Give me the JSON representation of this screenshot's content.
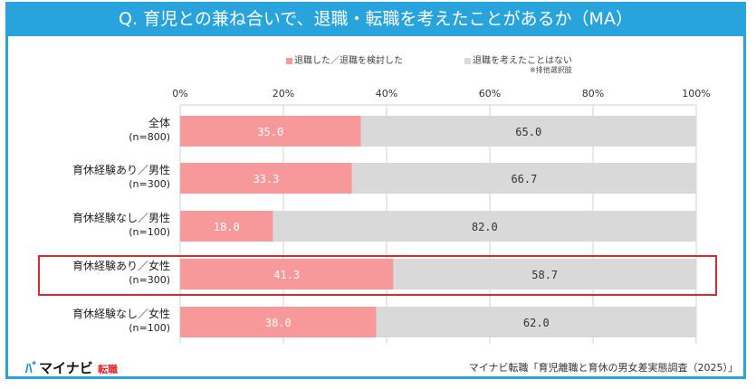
{
  "title": "Q. 育児との兼ね合いで、退職・転職を考えたことがあるか（MA）",
  "note": "※排他選択肢",
  "source": "マイナビ転職「育児離職と育休の男女差実態調査（2025）」",
  "logo": {
    "mark": "ﾊﾞ",
    "brand": "マイナビ",
    "sub": "転職"
  },
  "colors": {
    "series1": "#f7999b",
    "series2": "#d9d9d9",
    "frame": "#29a3dc",
    "highlight": "#e0262e"
  },
  "chart_data": {
    "type": "bar",
    "orientation": "horizontal",
    "stacked": true,
    "xlim": [
      0,
      100
    ],
    "ticks": [
      "0%",
      "20%",
      "40%",
      "60%",
      "80%",
      "100%"
    ],
    "grid": true,
    "legend": "top",
    "categories": [
      {
        "label": "全体",
        "n": "(n=800)"
      },
      {
        "label": "育休経験あり／男性",
        "n": "(n=300)"
      },
      {
        "label": "育休経験なし／男性",
        "n": "(n=100)"
      },
      {
        "label": "育休経験あり／女性",
        "n": "(n=300)",
        "highlighted": true
      },
      {
        "label": "育休経験なし／女性",
        "n": "(n=100)"
      }
    ],
    "series": [
      {
        "name": "退職した／退職を検討した",
        "values": [
          35.0,
          33.3,
          18.0,
          41.3,
          38.0
        ],
        "labels": [
          "35.0",
          "33.3",
          "18.0",
          "41.3",
          "38.0"
        ]
      },
      {
        "name": "退職を考えたことはない",
        "values": [
          65.0,
          66.7,
          82.0,
          58.7,
          62.0
        ],
        "labels": [
          "65.0",
          "66.7",
          "82.0",
          "58.7",
          "62.0"
        ]
      }
    ]
  }
}
